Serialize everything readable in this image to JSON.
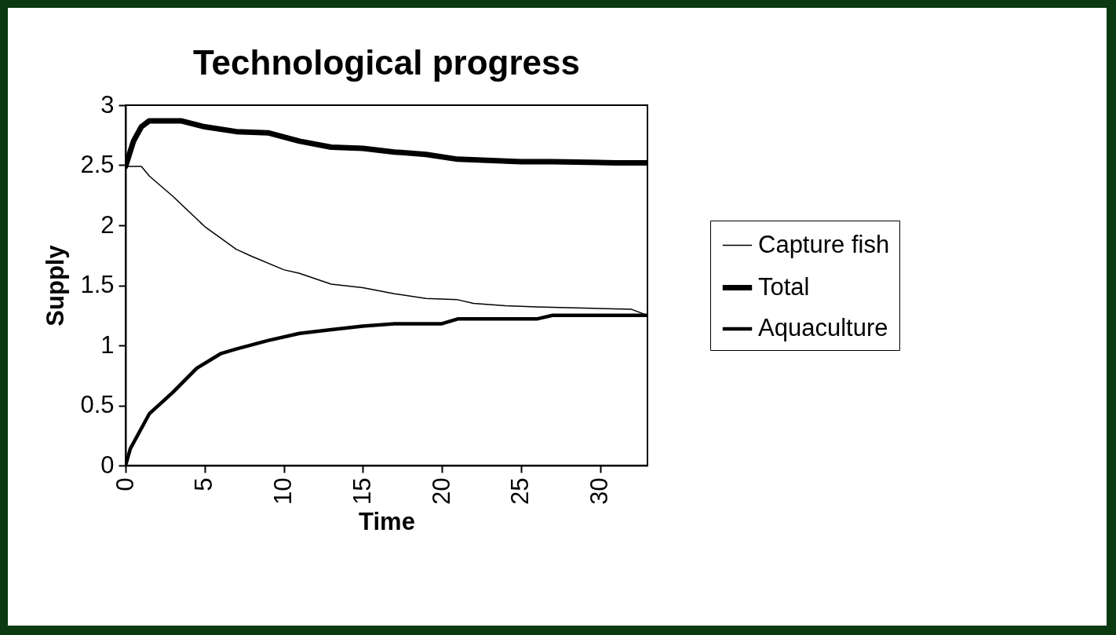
{
  "chart_data": {
    "type": "line",
    "title": "Technological progress",
    "xlabel": "Time",
    "ylabel": "Supply",
    "xlim": [
      0,
      33
    ],
    "xticks": [
      0,
      5,
      10,
      15,
      20,
      25,
      30
    ],
    "ylim": [
      0,
      3
    ],
    "yticks": [
      0,
      0.5,
      1,
      1.5,
      2,
      2.5,
      3
    ],
    "grid": false,
    "legend": "right",
    "marker": "none",
    "line_style": "solid",
    "series": [
      {
        "name": "Capture fish",
        "color": "#000000",
        "x": [
          0,
          1,
          1.5,
          3,
          5,
          7,
          8,
          10,
          11,
          13,
          15,
          17,
          19,
          21,
          22,
          24,
          26,
          32,
          33
        ],
        "values": [
          2.49,
          2.49,
          2.41,
          2.24,
          1.99,
          1.8,
          1.74,
          1.63,
          1.6,
          1.51,
          1.48,
          1.43,
          1.39,
          1.38,
          1.35,
          1.33,
          1.32,
          1.3,
          1.25
        ]
      },
      {
        "name": "Total",
        "color": "#000000",
        "x": [
          0,
          0.5,
          1,
          1.5,
          3.5,
          5,
          7,
          9,
          11,
          13,
          15,
          17,
          19,
          21,
          25,
          27,
          31,
          33
        ],
        "values": [
          2.49,
          2.7,
          2.82,
          2.87,
          2.87,
          2.82,
          2.78,
          2.77,
          2.7,
          2.65,
          2.64,
          2.61,
          2.59,
          2.55,
          2.53,
          2.53,
          2.52,
          2.52
        ]
      },
      {
        "name": "Aquaculture",
        "color": "#000000",
        "x": [
          0,
          0.3,
          1.5,
          3,
          4.5,
          6,
          7,
          9,
          11,
          13,
          15,
          17,
          20,
          21,
          26,
          27,
          33
        ],
        "values": [
          0,
          0.14,
          0.43,
          0.61,
          0.81,
          0.93,
          0.97,
          1.04,
          1.1,
          1.13,
          1.16,
          1.18,
          1.18,
          1.22,
          1.22,
          1.25,
          1.25
        ]
      }
    ]
  }
}
